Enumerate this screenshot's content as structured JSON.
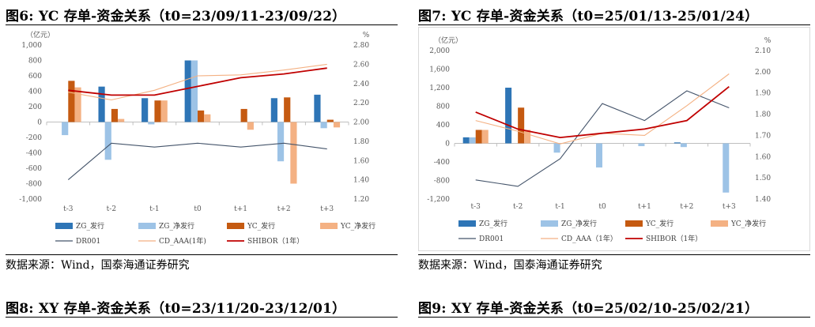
{
  "panels": [
    {
      "title": "图6:  YC 存单-资金关系（t0=23/09/11-23/09/22）",
      "source": "数据来源：Wind，国泰海通证券研究",
      "chart_data": {
        "type": "bar+line",
        "title": "",
        "left_axis_unit": "（亿元）",
        "right_axis_unit": "%",
        "categories": [
          "t-3",
          "t-2",
          "t-1",
          "t0",
          "t+1",
          "t+2",
          "t+3"
        ],
        "ylim_left": [
          -1000,
          1000
        ],
        "yticks_left": [
          "1,000",
          "800",
          "600",
          "400",
          "200",
          "0",
          "-200",
          "-400",
          "-600",
          "-800",
          "-1,000"
        ],
        "ylim_right": [
          1.2,
          2.8
        ],
        "yticks_right": [
          "2.80",
          "2.60",
          "2.40",
          "2.20",
          "2.00",
          "1.80",
          "1.60",
          "1.40",
          "1.20"
        ],
        "grid": false,
        "legend_position": "bottom",
        "bar_series": [
          {
            "name": "ZG_发行",
            "color": "#2E75B6",
            "values": [
              null,
              460,
              310,
              800,
              null,
              310,
              355
            ]
          },
          {
            "name": "ZG_净发行",
            "color": "#9DC3E6",
            "values": [
              -170,
              -490,
              -30,
              800,
              null,
              -510,
              -80
            ]
          },
          {
            "name": "YC_发行",
            "color": "#C55A11",
            "values": [
              535,
              170,
              280,
              150,
              170,
              320,
              30
            ]
          },
          {
            "name": "YC_净发行",
            "color": "#F4B183",
            "values": [
              450,
              40,
              280,
              100,
              -100,
              -800,
              -70
            ]
          }
        ],
        "line_series": [
          {
            "name": "DR001",
            "color": "#44546A",
            "values": [
              1.4,
              1.78,
              1.74,
              1.78,
              1.74,
              1.78,
              1.72
            ]
          },
          {
            "name": "CD_AAA(1年)",
            "color": "#F4B183",
            "values": [
              2.31,
              2.23,
              2.33,
              2.48,
              2.49,
              2.54,
              2.6
            ]
          },
          {
            "name": "SHIBOR（1年）",
            "color": "#C00000",
            "values": [
              2.33,
              2.28,
              2.28,
              2.37,
              2.46,
              2.5,
              2.56
            ]
          }
        ]
      }
    },
    {
      "title": "图7:  YC 存单-资金关系（t0=25/01/13-25/01/24）",
      "source": "数据来源：Wind，国泰海通证券研究",
      "chart_data": {
        "type": "bar+line",
        "title": "",
        "left_axis_unit": "（亿元）",
        "right_axis_unit": "%",
        "categories": [
          "t-3",
          "t-2",
          "t-1",
          "t0",
          "t+1",
          "t+2",
          "t+3"
        ],
        "ylim_left": [
          -1200,
          2000
        ],
        "yticks_left": [
          "2,000",
          "1,600",
          "1,200",
          "800",
          "400",
          "0",
          "-400",
          "-800",
          "-1,200"
        ],
        "ylim_right": [
          1.4,
          2.1
        ],
        "yticks_right": [
          "2.10",
          "2.00",
          "1.90",
          "1.80",
          "1.70",
          "1.60",
          "1.50",
          "1.40"
        ],
        "grid": false,
        "legend_position": "bottom",
        "bar_series": [
          {
            "name": "ZG_发行",
            "color": "#2E75B6",
            "values": [
              130,
              1200,
              null,
              null,
              null,
              20,
              null
            ]
          },
          {
            "name": "ZG_净发行",
            "color": "#9DC3E6",
            "values": [
              130,
              null,
              -200,
              -520,
              -60,
              -80,
              -1060
            ]
          },
          {
            "name": "YC_发行",
            "color": "#C55A11",
            "values": [
              290,
              770,
              null,
              null,
              null,
              null,
              null
            ]
          },
          {
            "name": "YC_净发行",
            "color": "#F4B183",
            "values": [
              290,
              290,
              null,
              null,
              null,
              null,
              null
            ]
          }
        ],
        "line_series": [
          {
            "name": "DR001",
            "color": "#44546A",
            "values": [
              1.49,
              1.46,
              1.59,
              1.85,
              1.77,
              1.91,
              1.83
            ]
          },
          {
            "name": "CD_AAA（1年）",
            "color": "#F4B183",
            "values": [
              1.77,
              1.72,
              1.66,
              1.71,
              1.7,
              1.84,
              1.99
            ]
          },
          {
            "name": "SHIBOR（1年）",
            "color": "#C00000",
            "values": [
              1.81,
              1.73,
              1.69,
              1.71,
              1.73,
              1.77,
              1.93
            ]
          }
        ]
      }
    },
    {
      "title": "图8:  XY 存单-资金关系（t0=23/11/20-23/12/01）"
    },
    {
      "title": "图9:  XY 存单-资金关系（t0=25/02/10-25/02/21）"
    }
  ]
}
